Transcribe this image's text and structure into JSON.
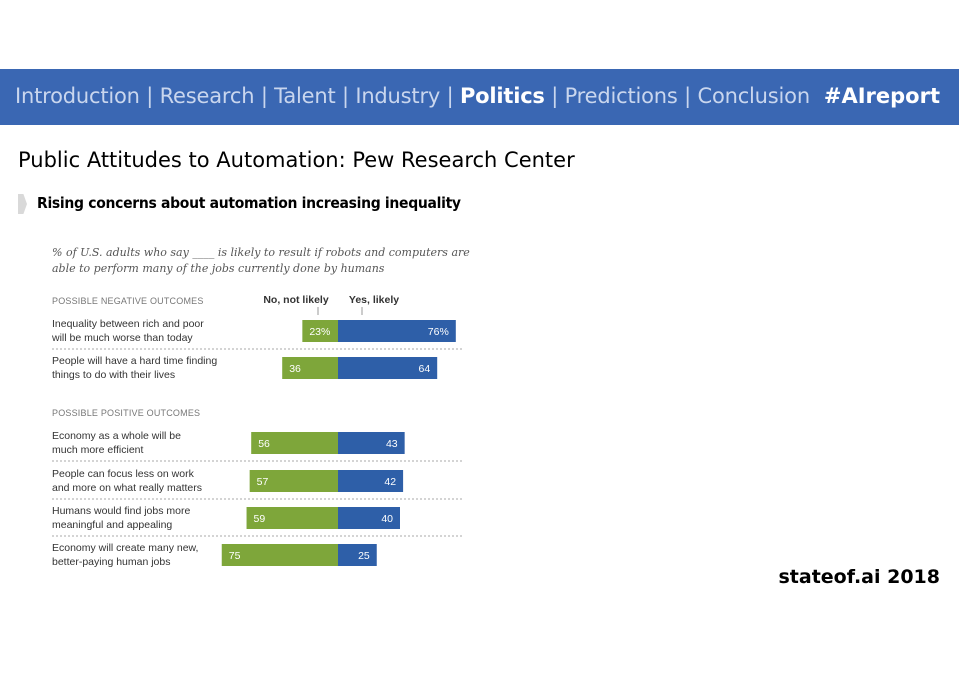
{
  "nav": {
    "items": [
      {
        "label": "Introduction",
        "active": false
      },
      {
        "label": "Research",
        "active": false
      },
      {
        "label": "Talent",
        "active": false
      },
      {
        "label": "Industry",
        "active": false
      },
      {
        "label": "Politics",
        "active": true
      },
      {
        "label": "Predictions",
        "active": false
      },
      {
        "label": "Conclusion",
        "active": false
      }
    ],
    "separator": "|",
    "hashtag": "#AIreport"
  },
  "page": {
    "title": "Public Attitudes to Automation: Pew Research Center",
    "subtitle": "Rising concerns about automation increasing inequality"
  },
  "footer": {
    "text": "stateof.ai 2018"
  },
  "colors": {
    "nav_bg": "#3a67b3",
    "no_bar": "#7ea63a",
    "yes_bar": "#2e5fa8"
  },
  "chart_data": {
    "type": "bar",
    "orientation": "horizontal-diverging",
    "title_lines": [
      "% of U.S. adults who say ____ is likely to result if robots and computers are",
      "able to perform many of the jobs currently done by humans"
    ],
    "series": [
      {
        "name": "No, not likely"
      },
      {
        "name": "Yes, likely"
      }
    ],
    "groups": [
      {
        "heading": "POSSIBLE NEGATIVE OUTCOMES",
        "items": [
          {
            "label_lines": [
              "Inequality between rich and poor",
              "will be much worse than today"
            ],
            "no": 23,
            "yes": 76,
            "no_label": "23%",
            "yes_label": "76%"
          },
          {
            "label_lines": [
              "People will have a hard time finding",
              "things to do with their lives"
            ],
            "no": 36,
            "yes": 64,
            "no_label": "36",
            "yes_label": "64"
          }
        ]
      },
      {
        "heading": "POSSIBLE POSITIVE OUTCOMES",
        "items": [
          {
            "label_lines": [
              "Economy as a whole will be",
              "much more efficient"
            ],
            "no": 56,
            "yes": 43,
            "no_label": "56",
            "yes_label": "43"
          },
          {
            "label_lines": [
              "People can focus less on work",
              "and more on what really matters"
            ],
            "no": 57,
            "yes": 42,
            "no_label": "57",
            "yes_label": "42"
          },
          {
            "label_lines": [
              "Humans would find jobs more",
              "meaningful and appealing"
            ],
            "no": 59,
            "yes": 40,
            "no_label": "59",
            "yes_label": "40"
          },
          {
            "label_lines": [
              "Economy will create many new,",
              "better-paying human jobs"
            ],
            "no": 75,
            "yes": 25,
            "no_label": "75",
            "yes_label": "25"
          }
        ]
      }
    ]
  }
}
